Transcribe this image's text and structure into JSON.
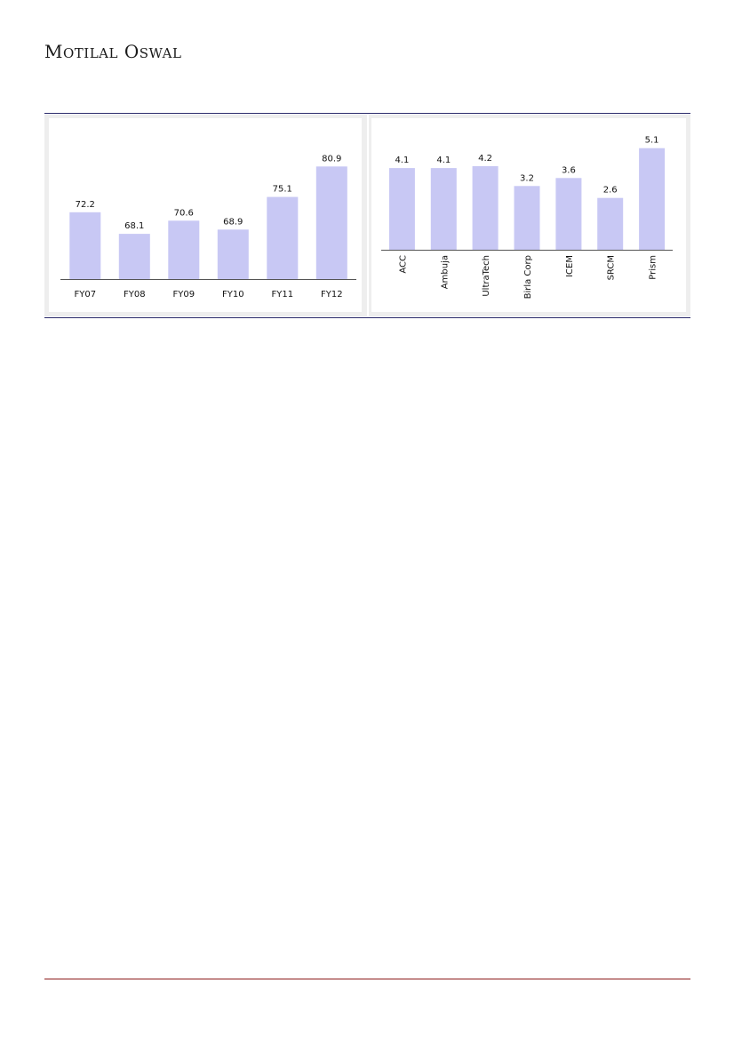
{
  "header": {
    "brand_first_cap": "M",
    "brand_first_rest": "OTILAL",
    "brand_second_cap": "O",
    "brand_second_rest": "SWAL"
  },
  "colors": {
    "bar": "#c8c8f4",
    "axis": "#555555",
    "rule": "#2a2a6a",
    "footer_rule": "#8b1a1a",
    "panel_bg": "#eeeeee"
  },
  "chart_data": [
    {
      "type": "bar",
      "categories": [
        "FY07",
        "FY08",
        "FY09",
        "FY10",
        "FY11",
        "FY12"
      ],
      "values": [
        72.2,
        68.1,
        70.6,
        68.9,
        75.1,
        80.9
      ],
      "value_labels": [
        "72.2",
        "68.1",
        "70.6",
        "68.9",
        "75.1",
        "80.9"
      ],
      "ylim": [
        59.5,
        85
      ],
      "tick_rotation": 0,
      "grid": false,
      "legend": "none"
    },
    {
      "type": "bar",
      "categories": [
        "ACC",
        "Ambuja",
        "UltraTech",
        "Birla Corp",
        "ICEM",
        "SRCM",
        "Prism"
      ],
      "values": [
        4.1,
        4.1,
        4.2,
        3.2,
        3.6,
        2.6,
        5.1
      ],
      "value_labels": [
        "4.1",
        "4.1",
        "4.2",
        "3.2",
        "3.6",
        "2.6",
        "5.1"
      ],
      "ylim": [
        0,
        5.8
      ],
      "tick_rotation": -90,
      "grid": false,
      "legend": "none"
    }
  ]
}
